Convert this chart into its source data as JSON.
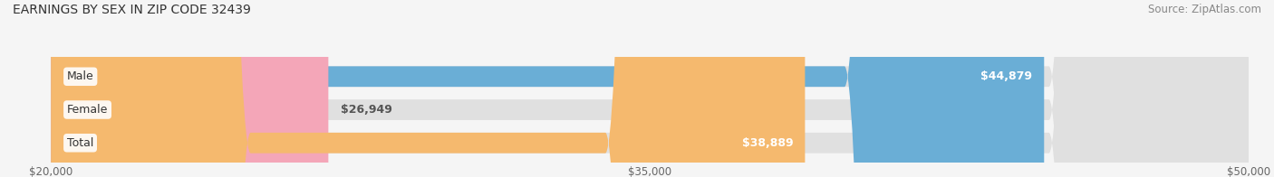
{
  "title": "EARNINGS BY SEX IN ZIP CODE 32439",
  "source": "Source: ZipAtlas.com",
  "categories": [
    "Male",
    "Female",
    "Total"
  ],
  "values": [
    44879,
    26949,
    38889
  ],
  "bar_colors": [
    "#6aaed6",
    "#f4a6b8",
    "#f5b96e"
  ],
  "bar_labels": [
    "$44,879",
    "$26,949",
    "$38,889"
  ],
  "xmin": 20000,
  "xmax": 50000,
  "xticks": [
    20000,
    35000,
    50000
  ],
  "xtick_labels": [
    "$20,000",
    "$35,000",
    "$50,000"
  ],
  "label_inside_threshold": 30000,
  "background_color": "#f5f5f5",
  "bar_bg_color": "#e0e0e0",
  "title_fontsize": 10,
  "source_fontsize": 8.5,
  "label_fontsize": 9,
  "category_fontsize": 9
}
